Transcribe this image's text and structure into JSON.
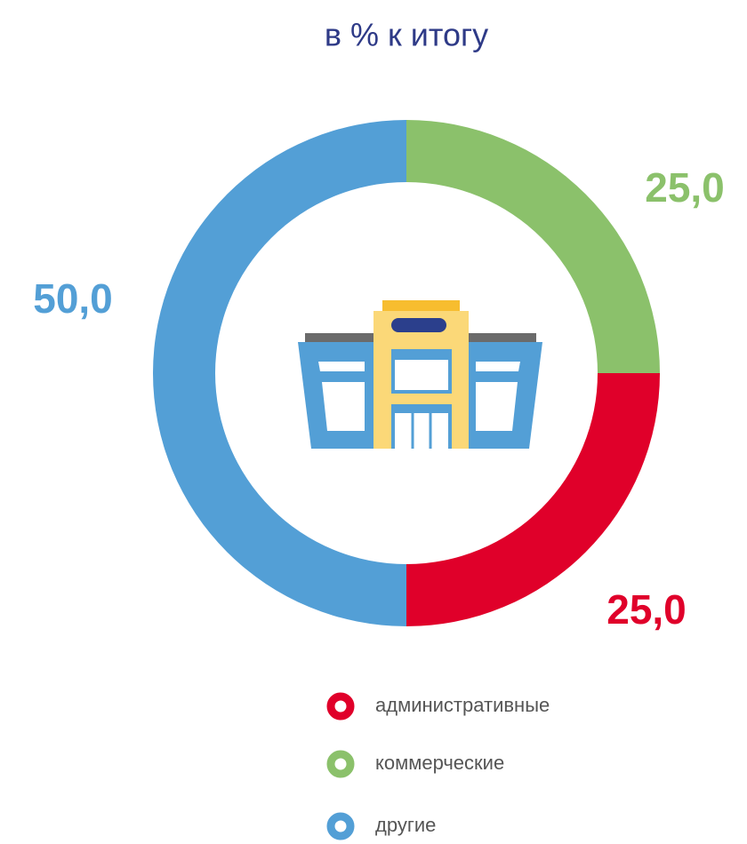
{
  "chart_data": {
    "type": "donut",
    "title": "в % к итогу",
    "categories": [
      "административные",
      "коммерческие",
      "другие"
    ],
    "values": [
      25,
      25,
      50
    ],
    "value_labels": [
      "25,0",
      "25,0",
      "50,0"
    ],
    "colors": [
      "#e0002a",
      "#8bc16b",
      "#539fd6"
    ]
  }
}
